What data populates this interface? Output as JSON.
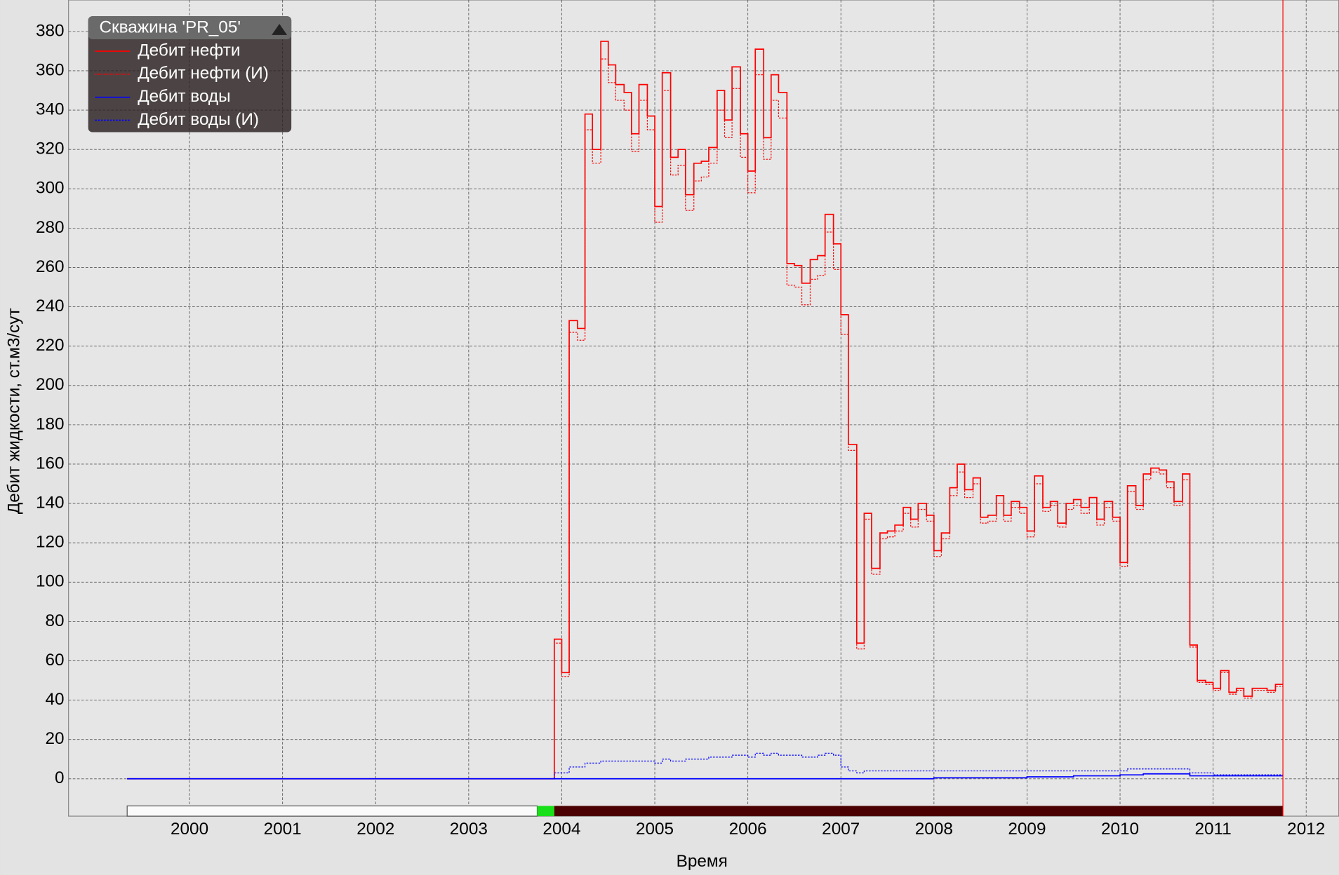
{
  "chart_data": {
    "type": "step",
    "legend_title": "Скважина 'PR_05'",
    "x_label": "Время",
    "y_label": "Дебит жидкости, ст.м3/сут",
    "xlim": [
      1998.7,
      2012.35
    ],
    "ylim": [
      -19,
      396
    ],
    "xticks": [
      2000,
      2001,
      2002,
      2003,
      2004,
      2005,
      2006,
      2007,
      2008,
      2009,
      2010,
      2011,
      2012
    ],
    "yticks": [
      0,
      20,
      40,
      60,
      80,
      100,
      120,
      140,
      160,
      180,
      200,
      220,
      240,
      260,
      280,
      300,
      320,
      340,
      360,
      380
    ],
    "grid": true,
    "legend": "upper left",
    "x": [
      1999.33,
      2003.92,
      2004.0,
      2004.08,
      2004.17,
      2004.25,
      2004.33,
      2004.42,
      2004.5,
      2004.58,
      2004.67,
      2004.75,
      2004.83,
      2004.92,
      2005.0,
      2005.08,
      2005.17,
      2005.25,
      2005.33,
      2005.42,
      2005.5,
      2005.58,
      2005.67,
      2005.75,
      2005.83,
      2005.92,
      2006.0,
      2006.08,
      2006.17,
      2006.25,
      2006.33,
      2006.42,
      2006.5,
      2006.58,
      2006.67,
      2006.75,
      2006.83,
      2006.92,
      2007.0,
      2007.08,
      2007.17,
      2007.25,
      2007.33,
      2007.42,
      2007.5,
      2007.58,
      2007.67,
      2007.75,
      2007.83,
      2007.92,
      2008.0,
      2008.08,
      2008.17,
      2008.25,
      2008.33,
      2008.42,
      2008.5,
      2008.58,
      2008.67,
      2008.75,
      2008.83,
      2008.92,
      2009.0,
      2009.08,
      2009.17,
      2009.25,
      2009.33,
      2009.42,
      2009.5,
      2009.58,
      2009.67,
      2009.75,
      2009.83,
      2009.92,
      2010.0,
      2010.08,
      2010.17,
      2010.25,
      2010.33,
      2010.42,
      2010.5,
      2010.58,
      2010.67,
      2010.75,
      2010.83,
      2010.92,
      2011.0,
      2011.08,
      2011.17,
      2011.25,
      2011.33,
      2011.42,
      2011.5,
      2011.58,
      2011.67,
      2011.75
    ],
    "series": [
      {
        "name": "Дебит нефти",
        "color": "#ff0000",
        "style": "solid",
        "values": [
          0,
          71,
          54,
          233,
          229,
          338,
          320,
          375,
          363,
          353,
          349,
          328,
          353,
          337,
          291,
          359,
          316,
          320,
          297,
          313,
          314,
          321,
          350,
          335,
          362,
          328,
          309,
          371,
          326,
          358,
          349,
          262,
          261,
          252,
          264,
          266,
          287,
          272,
          236,
          170,
          69,
          135,
          107,
          125,
          126,
          129,
          138,
          132,
          140,
          134,
          116,
          125,
          148,
          160,
          147,
          153,
          133,
          134,
          144,
          134,
          141,
          138,
          126,
          154,
          138,
          141,
          130,
          140,
          142,
          138,
          143,
          132,
          141,
          133,
          110,
          149,
          139,
          155,
          158,
          157,
          151,
          141,
          155,
          68,
          50,
          49,
          46,
          55,
          44,
          46,
          42,
          46,
          46,
          45,
          48,
          48
        ]
      },
      {
        "name": "Дебит нефти (И)",
        "color": "#ff0000",
        "style": "dotted",
        "values": [
          0,
          69,
          52,
          227,
          223,
          330,
          313,
          366,
          354,
          345,
          340,
          319,
          345,
          330,
          283,
          350,
          307,
          312,
          289,
          304,
          306,
          313,
          340,
          326,
          351,
          316,
          298,
          358,
          315,
          345,
          336,
          251,
          250,
          241,
          254,
          256,
          278,
          259,
          226,
          167,
          66,
          132,
          104,
          122,
          123,
          126,
          135,
          128,
          137,
          131,
          113,
          122,
          144,
          156,
          143,
          150,
          130,
          131,
          140,
          131,
          138,
          135,
          123,
          150,
          136,
          139,
          128,
          137,
          139,
          135,
          140,
          129,
          138,
          131,
          108,
          146,
          137,
          152,
          156,
          155,
          148,
          139,
          152,
          67,
          49,
          48,
          45,
          54,
          43,
          45,
          41,
          45,
          45,
          44,
          47,
          47
        ]
      },
      {
        "name": "Дебит воды",
        "color": "#0000ff",
        "style": "solid",
        "values": [
          0,
          0,
          0,
          0,
          0,
          0,
          0,
          0,
          0,
          0,
          0,
          0,
          0,
          0,
          0,
          0,
          0,
          0,
          0,
          0,
          0,
          0,
          0,
          0,
          0,
          0,
          0,
          0,
          0,
          0,
          0,
          0,
          0,
          0,
          0,
          0,
          0,
          0,
          0,
          0,
          0,
          0,
          0,
          0,
          0,
          0,
          0,
          0,
          0,
          0,
          0.5,
          0.5,
          0.5,
          0.5,
          0.5,
          0.5,
          0.5,
          0.5,
          0.5,
          0.5,
          0.5,
          0.5,
          1,
          1,
          1,
          1,
          1,
          1,
          1.5,
          1.5,
          1.5,
          1.5,
          1.5,
          1.5,
          2,
          2,
          2,
          2.5,
          2.5,
          2.5,
          2.5,
          2.5,
          2.5,
          1.5,
          1.5,
          1.5,
          1.5,
          1.5,
          1.5,
          1.5,
          1.5,
          1.5,
          1.5,
          1.5,
          1.5,
          1.5
        ]
      },
      {
        "name": "Дебит воды (И)",
        "color": "#0000ff",
        "style": "dotted",
        "values": [
          0,
          3,
          3,
          6,
          6,
          8,
          8,
          9,
          9,
          9,
          9,
          9,
          9,
          9,
          8,
          10,
          9,
          9,
          10,
          10,
          10,
          11,
          11,
          11,
          12,
          12,
          11,
          13,
          12,
          13,
          12,
          12,
          12,
          11,
          11,
          12,
          13,
          12,
          6,
          4,
          3,
          4,
          4,
          4,
          4,
          4,
          4,
          4,
          4,
          4,
          4,
          4,
          4,
          4,
          4,
          4,
          4,
          4,
          4,
          4,
          4,
          4,
          4,
          4,
          4,
          4,
          4,
          4,
          4,
          4,
          4,
          4,
          4,
          4,
          4,
          5,
          5,
          5,
          5,
          5,
          5,
          5,
          5,
          3,
          3,
          3,
          2,
          2,
          2,
          2,
          2,
          2,
          2,
          2,
          2,
          2
        ]
      }
    ]
  }
}
